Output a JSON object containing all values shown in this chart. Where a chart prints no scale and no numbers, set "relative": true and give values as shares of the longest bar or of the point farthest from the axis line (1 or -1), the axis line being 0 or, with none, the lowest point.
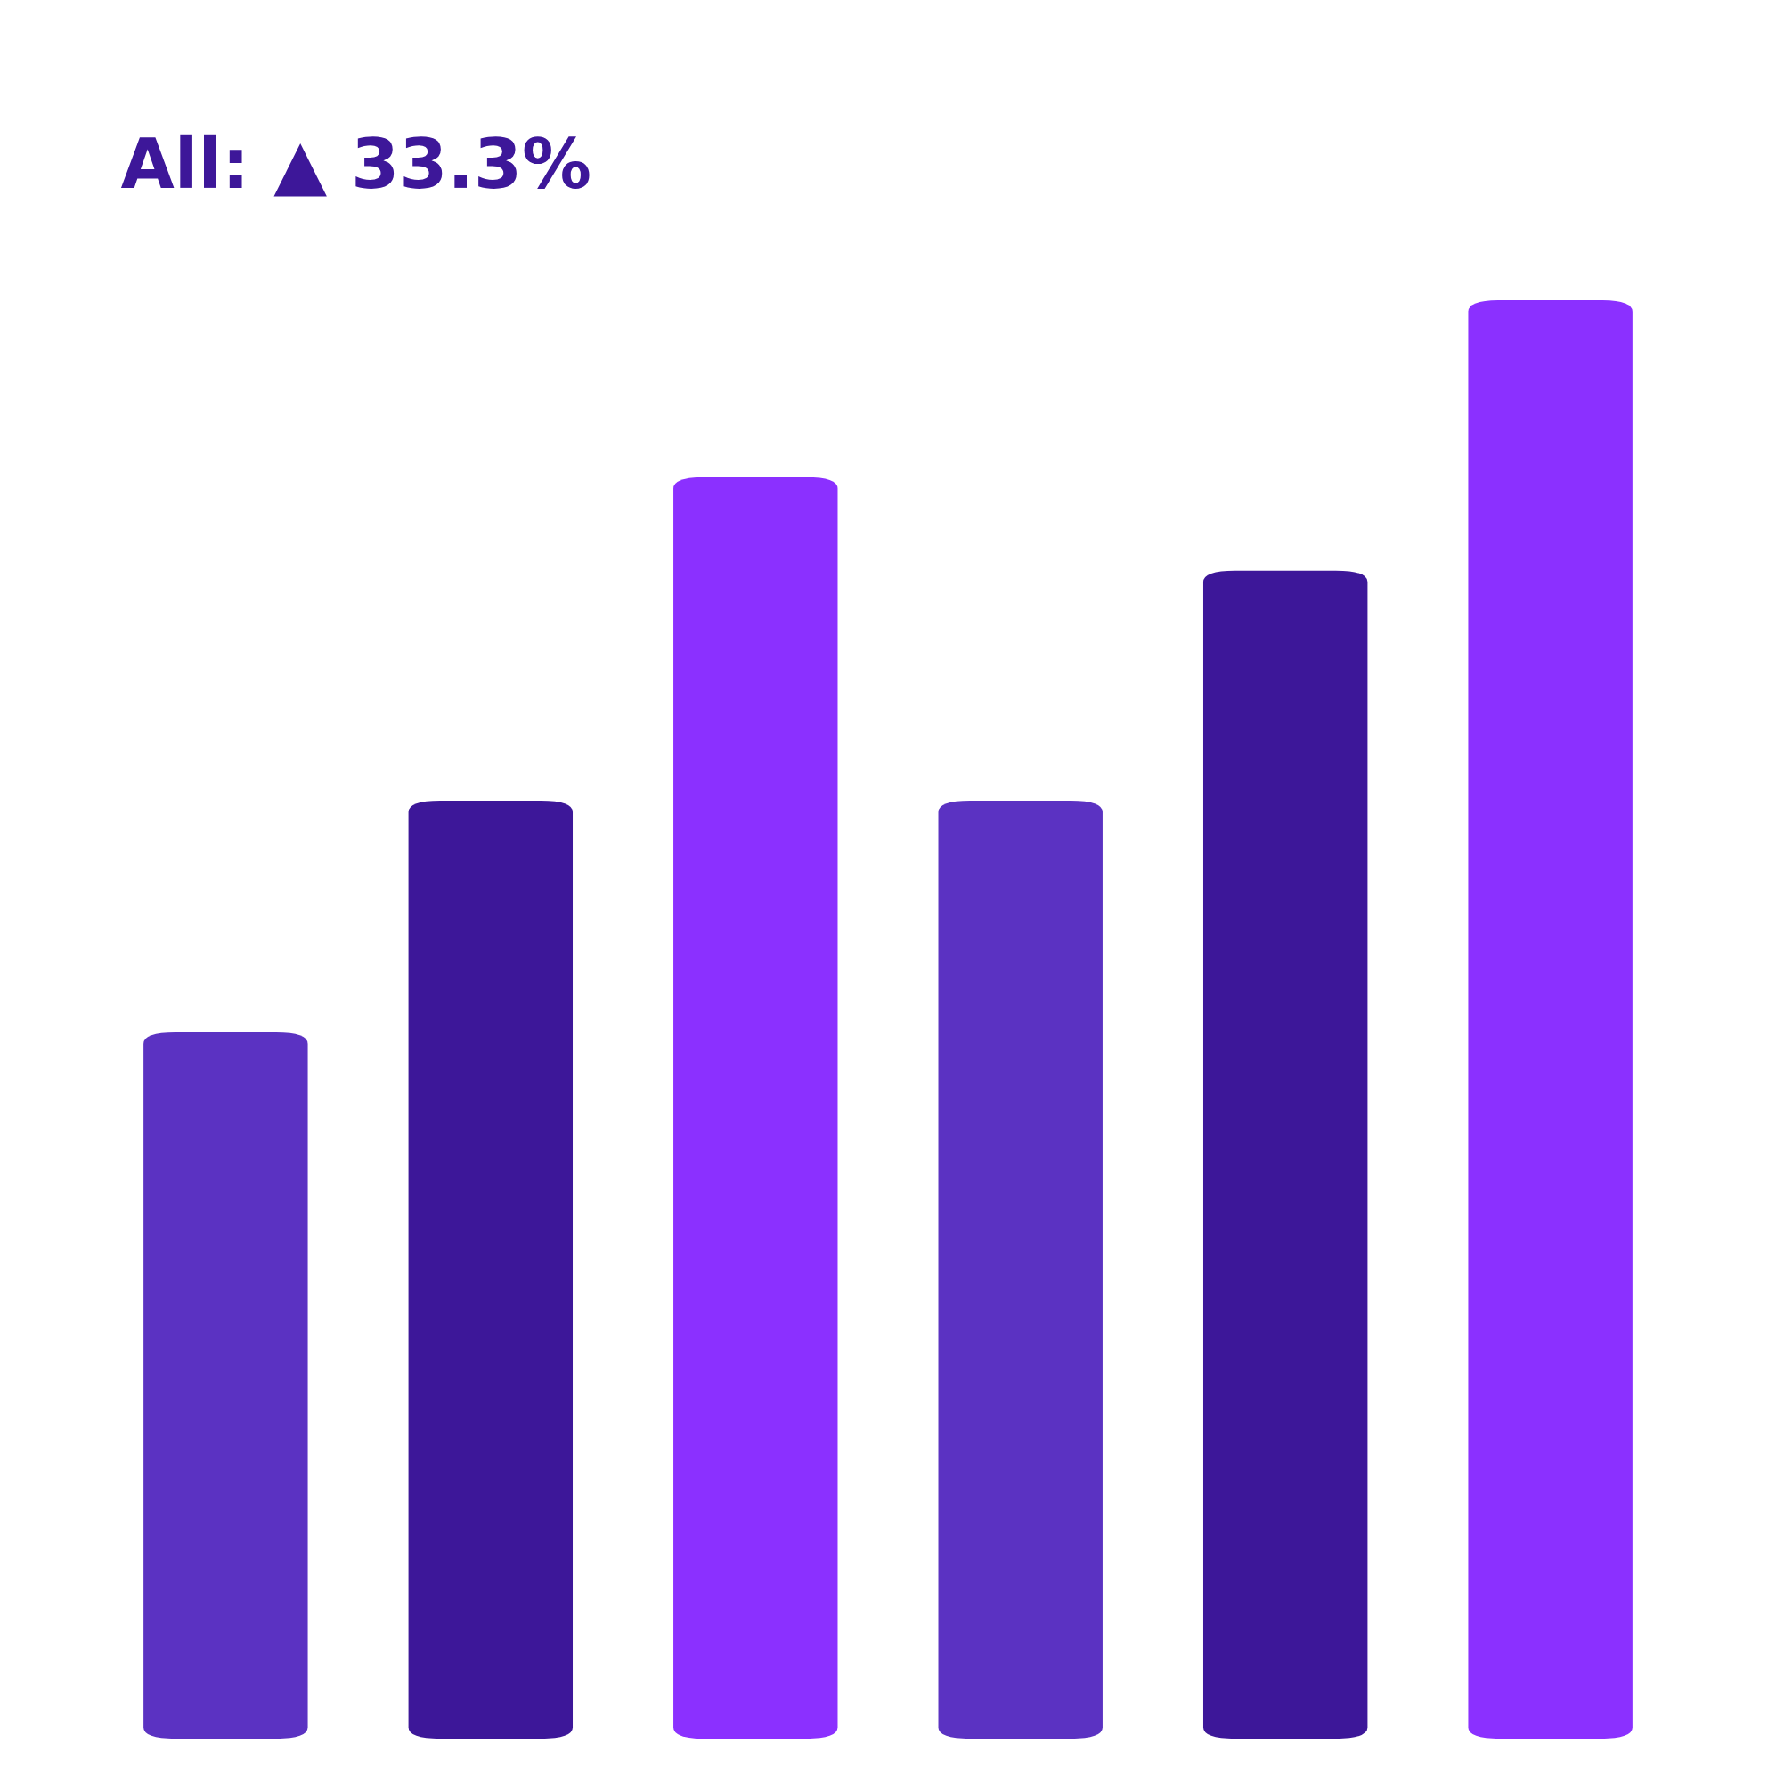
{
  "chart_data": {
    "type": "bar",
    "title": "All: ▲ 33.3%",
    "relative": true,
    "categories": [
      null,
      null,
      null,
      null,
      null,
      null
    ],
    "values": [
      0.491,
      0.652,
      0.877,
      0.652,
      0.812,
      1.0
    ],
    "colors": [
      "#5b32c2",
      "#3d1799",
      "#8b30ff",
      "#5b32c2",
      "#3d1799",
      "#8b30ff"
    ],
    "grid": false,
    "legend": false
  }
}
